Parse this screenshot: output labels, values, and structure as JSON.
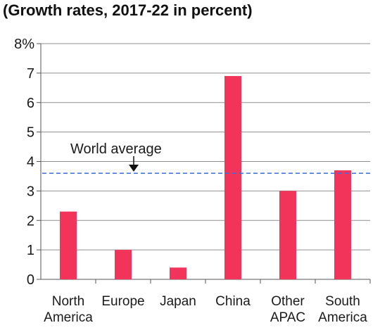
{
  "chart_data": {
    "type": "bar",
    "title": "(Growth rates, 2017-22 in percent)",
    "categories": [
      [
        "North",
        "America"
      ],
      [
        "Europe"
      ],
      [
        "Japan"
      ],
      [
        "China"
      ],
      [
        "Other",
        "APAC"
      ],
      [
        "South",
        "America"
      ]
    ],
    "values": [
      2.3,
      1.0,
      0.4,
      6.9,
      3.0,
      3.7
    ],
    "y_ticks": [
      "0",
      "1",
      "2",
      "3",
      "4",
      "5",
      "6",
      "7",
      "8%"
    ],
    "ylim": [
      0,
      8
    ],
    "grid": true,
    "bar_color": "#f2345a",
    "reference_line": {
      "label": "World average",
      "value": 3.6,
      "color": "#3a6fd6",
      "style": "dashed"
    }
  }
}
